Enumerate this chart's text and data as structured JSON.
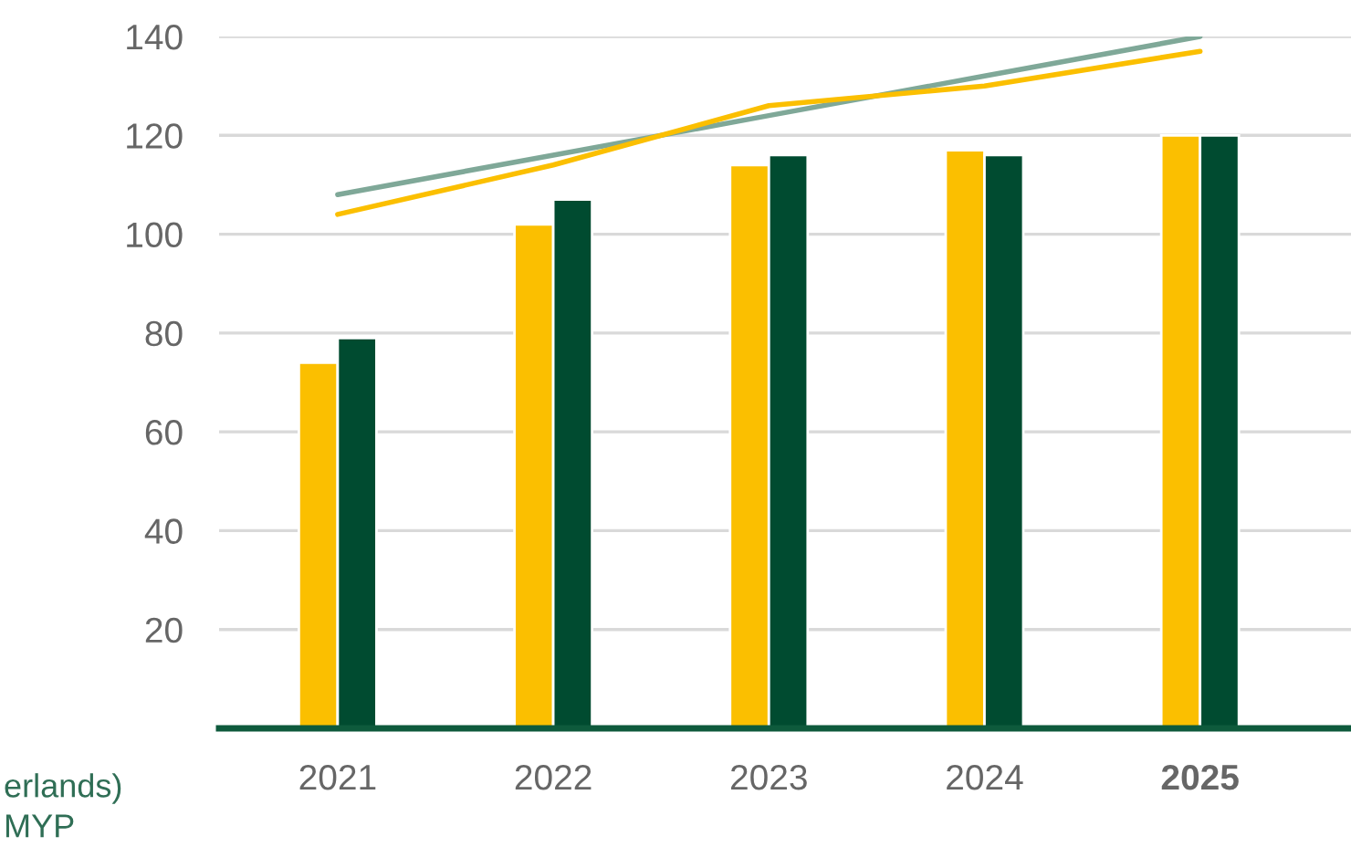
{
  "chart_data": {
    "type": "bar",
    "categories": [
      "2021",
      "2022",
      "2023",
      "2024",
      "2025"
    ],
    "series": [
      {
        "color": "#fbbf00",
        "values": [
          74,
          102,
          114,
          117,
          120
        ]
      },
      {
        "color": "#004b30",
        "values": [
          79,
          107,
          116,
          116,
          120
        ]
      },
      {
        "type": "line",
        "color": "#7fa898",
        "values": [
          108,
          116,
          124,
          132,
          140
        ]
      },
      {
        "type": "line",
        "color": "#fbbf00",
        "values": [
          104,
          114,
          126,
          130,
          137
        ]
      }
    ],
    "ylim": [
      0,
      140
    ],
    "yticks": [
      20,
      40,
      60,
      80,
      100,
      120,
      140
    ],
    "grid": "y",
    "annotations": [
      "erlands)",
      "MYP"
    ]
  }
}
